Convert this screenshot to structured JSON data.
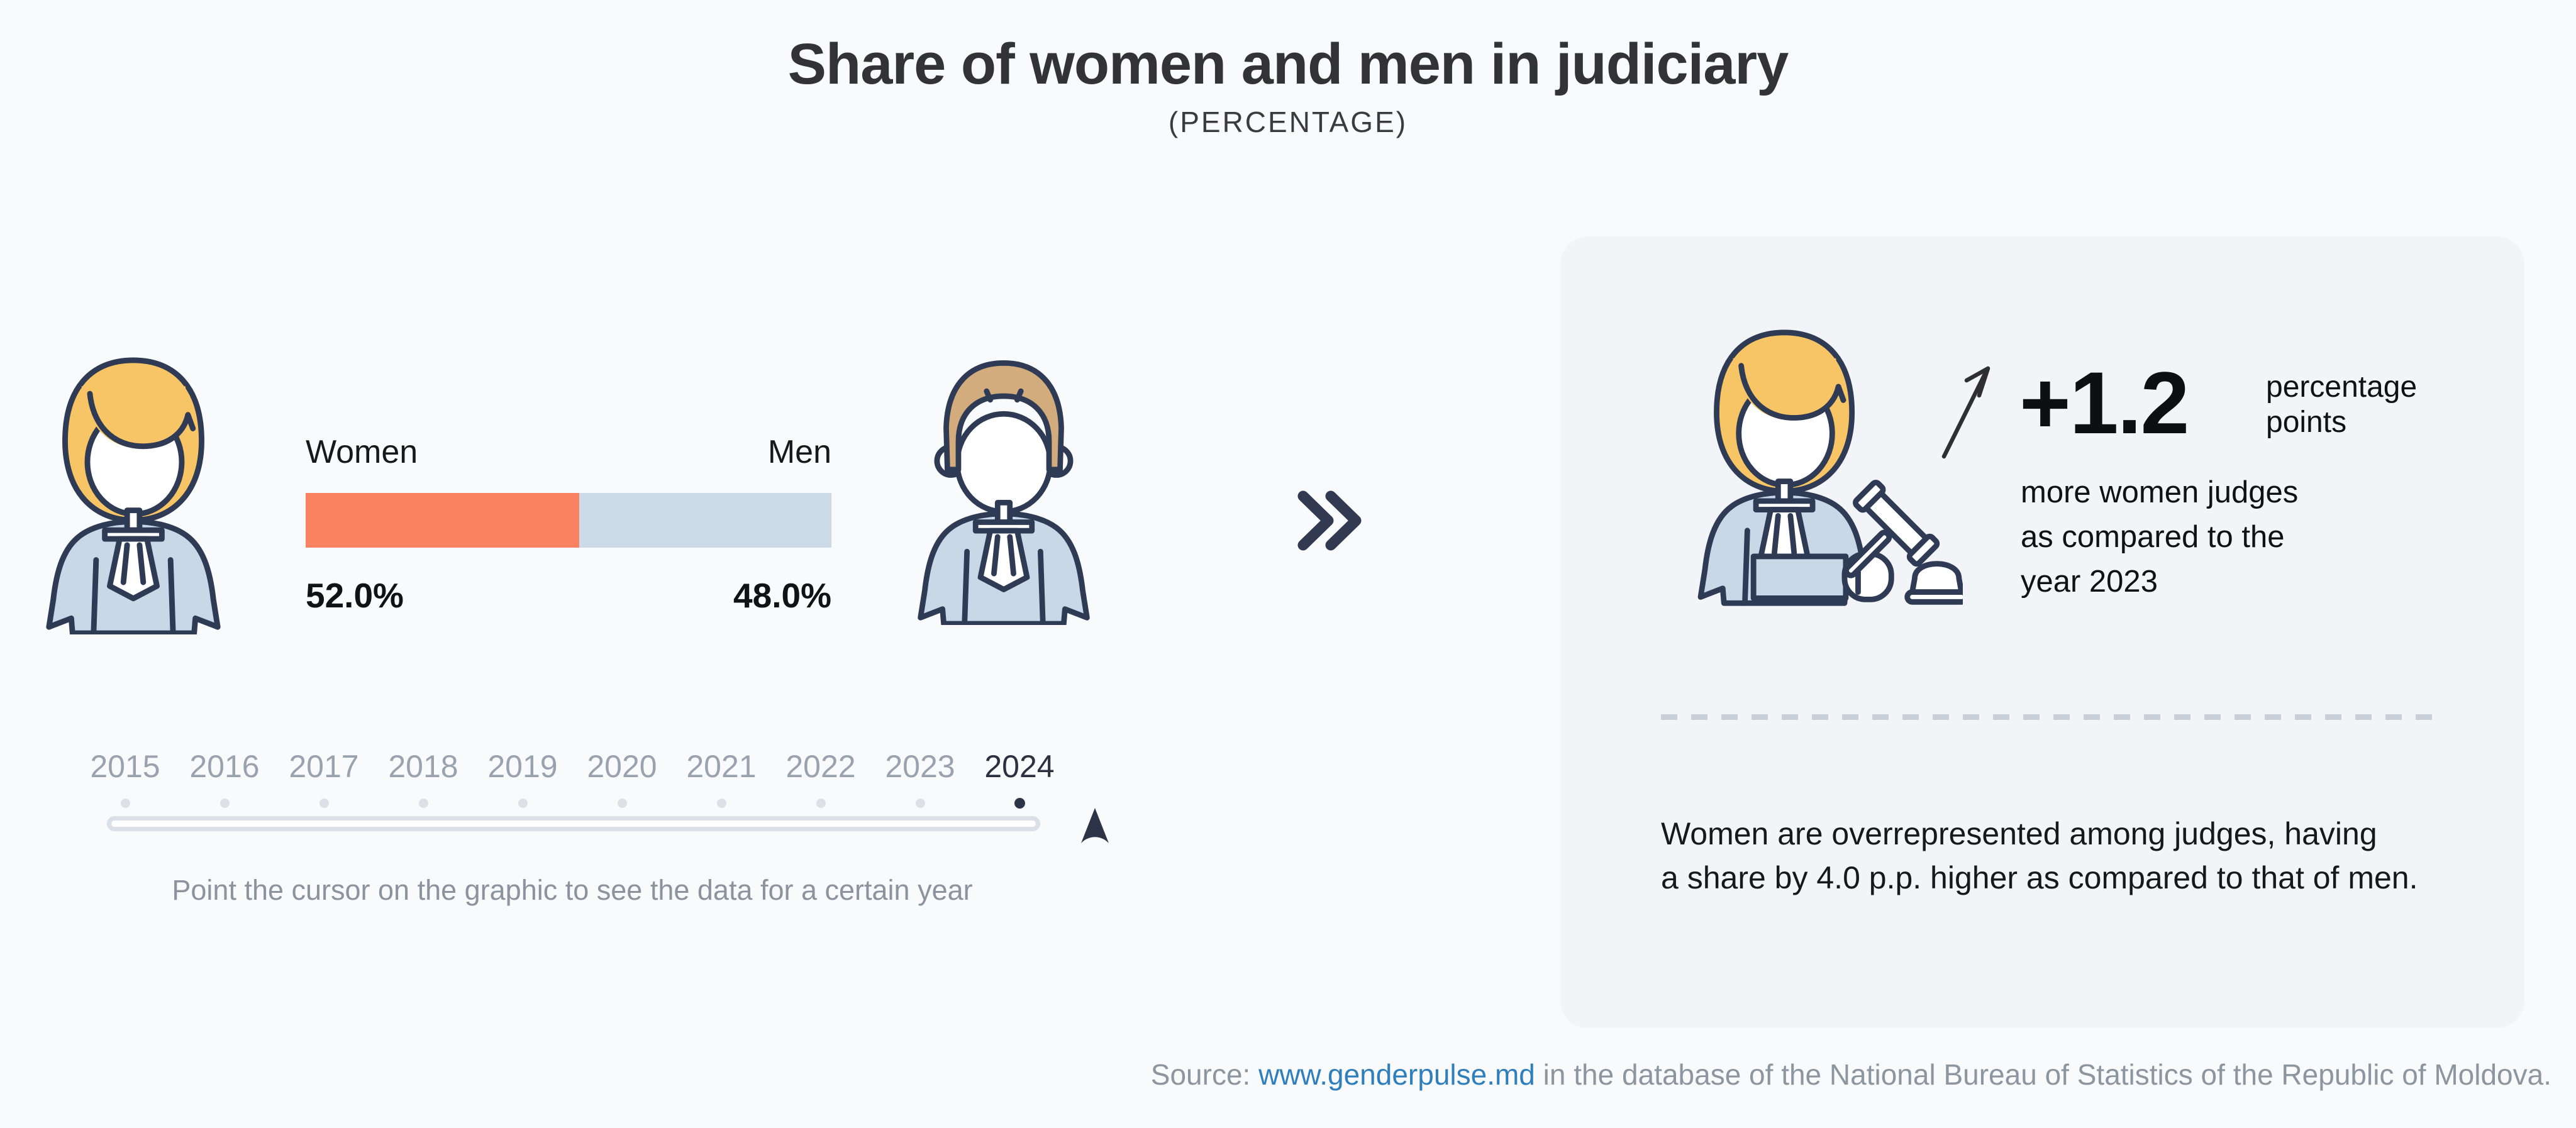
{
  "header": {
    "title": "Share of women and men in judiciary",
    "subtitle": "(PERCENTAGE)"
  },
  "chart_data": {
    "type": "bar",
    "subtype": "stacked-horizontal-100-percent",
    "title": "Share of women and men in judiciary",
    "subtitle": "(PERCENTAGE)",
    "categories": [
      "Women",
      "Men"
    ],
    "values": [
      52.0,
      48.0
    ],
    "value_labels": [
      "52.0%",
      "48.0%"
    ],
    "unit": "%",
    "selected_year": "2024",
    "years_available": [
      "2015",
      "2016",
      "2017",
      "2018",
      "2019",
      "2020",
      "2021",
      "2022",
      "2023",
      "2024"
    ],
    "colors": {
      "women": "#FA8263",
      "men": "#CCD9E6"
    },
    "legend_position": "above-bar",
    "grid": false
  },
  "left_chart": {
    "women_label": "Women",
    "men_label": "Men",
    "women_value": "52.0%",
    "men_value": "48.0%"
  },
  "timeline": {
    "years": [
      "2015",
      "2016",
      "2017",
      "2018",
      "2019",
      "2020",
      "2021",
      "2022",
      "2023",
      "2024"
    ],
    "selected_year": "2024",
    "hint": "Point the cursor on the graphic to see the data for a certain year"
  },
  "insight_card": {
    "delta_value": "+1.2",
    "delta_unit": "percentage\npoints",
    "delta_description": "more women judges\nas compared to the\nyear 2023",
    "summary": "Women are overrepresented among judges, having\na share by 4.0 p.p. higher as compared to that of men."
  },
  "source": {
    "prefix": "Source: ",
    "link_text": "www.genderpulse.md",
    "suffix": " in the database of the National Bureau of Statistics of the Republic of Moldova."
  },
  "colors": {
    "page_background": "#F9FAFB",
    "card_background": "#F2F4F7",
    "accent_women": "#FA8263",
    "accent_men": "#CCD9E6",
    "outline_navy": "#2F3A54",
    "selected_navy": "#2E3447",
    "year_gray": "#99A3AF",
    "hint_gray": "#8A939E",
    "link_blue": "#2F7FBD"
  }
}
